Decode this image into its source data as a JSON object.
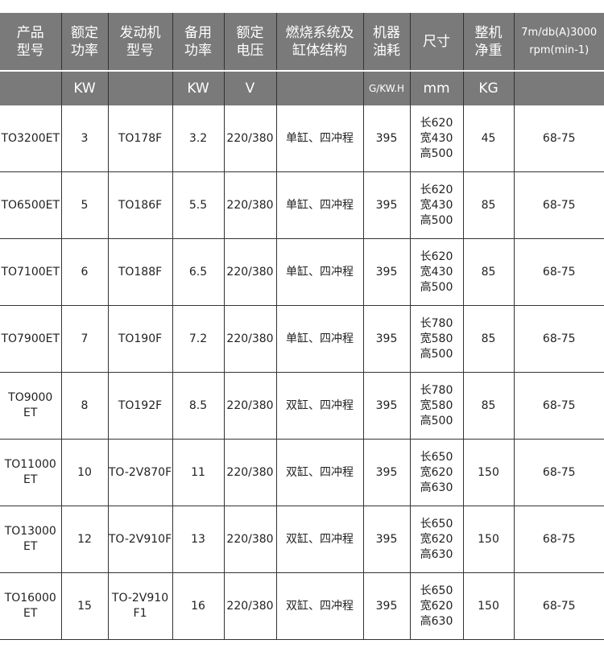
{
  "headers": [
    {
      "title": "产品\n型号",
      "unit": ""
    },
    {
      "title": "额定\n功率",
      "unit": "KW"
    },
    {
      "title": "发动机\n型号",
      "unit": ""
    },
    {
      "title": "备用\n功率",
      "unit": "KW"
    },
    {
      "title": "额定\n电压",
      "unit": "V"
    },
    {
      "title": "燃烧系统及\n缸体结构",
      "unit": ""
    },
    {
      "title": "机器\n油耗",
      "unit": "G/KW.H"
    },
    {
      "title": "尺寸",
      "unit": "mm"
    },
    {
      "title": "整机\n净重",
      "unit": "KG"
    },
    {
      "title": "7m/db(A)3000\nrpm(min-1)",
      "unit": ""
    }
  ],
  "rows": [
    [
      "TO3200ET",
      "3",
      "TO178F",
      "3.2",
      "220/380",
      "单缸、四冲程",
      "395",
      "长620\n宽430\n高500",
      "45",
      "68-75"
    ],
    [
      "TO6500ET",
      "5",
      "TO186F",
      "5.5",
      "220/380",
      "单缸、四冲程",
      "395",
      "长620\n宽430\n高500",
      "85",
      "68-75"
    ],
    [
      "TO7100ET",
      "6",
      "TO188F",
      "6.5",
      "220/380",
      "单缸、四冲程",
      "395",
      "长620\n宽430\n高500",
      "85",
      "68-75"
    ],
    [
      "TO7900ET",
      "7",
      "TO190F",
      "7.2",
      "220/380",
      "单缸、四冲程",
      "395",
      "长780\n宽580\n高500",
      "85",
      "68-75"
    ],
    [
      "TO9000\nET",
      "8",
      "TO192F",
      "8.5",
      "220/380",
      "双缸、四冲程",
      "395",
      "长780\n宽580\n高500",
      "85",
      "68-75"
    ],
    [
      "TO11000\nET",
      "10",
      "TO-2V870F",
      "11",
      "220/380",
      "双缸、四冲程",
      "395",
      "长650\n宽620\n高630",
      "150",
      "68-75"
    ],
    [
      "TO13000\nET",
      "12",
      "TO-2V910F",
      "13",
      "220/380",
      "双缸、四冲程",
      "395",
      "长650\n宽620\n高630",
      "150",
      "68-75"
    ],
    [
      "TO16000\nET",
      "15",
      "TO-2V910\nF1",
      "16",
      "220/380",
      "双缸、四冲程",
      "395",
      "长650\n宽620\n高630",
      "150",
      "68-75"
    ]
  ],
  "colors": {
    "header_bg": "#7a7a7a",
    "header_text": "#ffffff",
    "grid": "#333333"
  }
}
